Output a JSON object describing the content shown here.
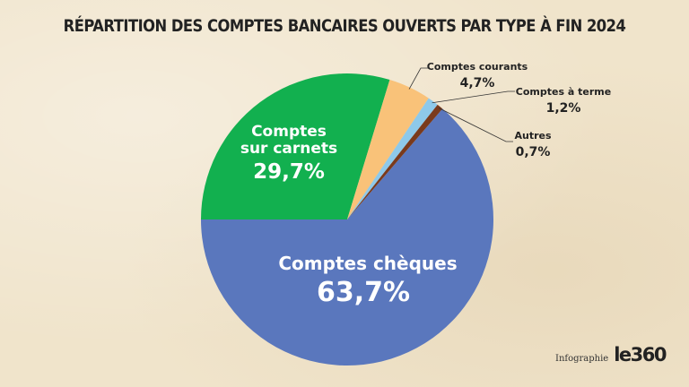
{
  "header": {
    "title": "RÉPARTITION DES COMPTES BANCAIRES OUVERTS PAR TYPE À FIN 2024"
  },
  "footer": {
    "credit": "Infographie",
    "logo": "le360"
  },
  "colors": {
    "comptes_cheques": "#5a77bd",
    "comptes_sur_carnets": "#12b04f",
    "comptes_courants": "#f9c279",
    "comptes_a_terme": "#8ec9ea",
    "autres": "#7a3a1c",
    "background": "#f0e4cb"
  },
  "chart_data": {
    "type": "pie",
    "title": "RÉPARTITION DES COMPTES BANCAIRES OUVERTS PAR TYPE À FIN 2024",
    "categories": [
      "Comptes chèques",
      "Comptes sur carnets",
      "Comptes courants",
      "Comptes à terme",
      "Autres"
    ],
    "values": [
      63.7,
      29.7,
      4.7,
      1.2,
      0.7
    ],
    "value_labels": [
      "63,7%",
      "29,7%",
      "4,7%",
      "1,2%",
      "0,7%"
    ],
    "slice_labels": [
      [
        "Comptes chèques"
      ],
      [
        "Comptes",
        "sur carnets"
      ],
      [
        "Comptes courants"
      ],
      [
        "Comptes à terme"
      ],
      [
        "Autres"
      ]
    ],
    "unit": "%",
    "legend": "none"
  }
}
